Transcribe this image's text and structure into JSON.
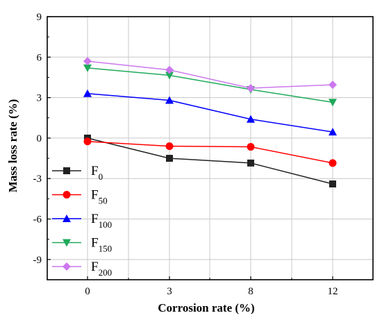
{
  "chart_data": {
    "type": "line",
    "title": "",
    "xlabel": "Corrosion rate (%)",
    "ylabel": "Mass loss rate (%)",
    "categories": [
      "0",
      "3",
      "8",
      "12"
    ],
    "ylim": [
      -10.5,
      9
    ],
    "yticks": [
      9,
      6,
      3,
      0,
      -3,
      -6,
      -9
    ],
    "ytick_labels": [
      "9",
      "6",
      "3",
      "0",
      "-3",
      "-6",
      "-9"
    ],
    "grid": true,
    "legend_position": "bottom-left",
    "series": [
      {
        "name": "F",
        "sub": "0",
        "color": "#222222",
        "marker": "square",
        "values": [
          0.0,
          -1.5,
          -1.85,
          -3.4
        ]
      },
      {
        "name": "F",
        "sub": "50",
        "color": "#ff0000",
        "marker": "circle",
        "values": [
          -0.25,
          -0.6,
          -0.65,
          -1.85
        ]
      },
      {
        "name": "F",
        "sub": "100",
        "color": "#0000ff",
        "marker": "triangle-up",
        "values": [
          3.3,
          2.8,
          1.4,
          0.45
        ]
      },
      {
        "name": "F",
        "sub": "150",
        "color": "#1faa5a",
        "marker": "triangle-down",
        "values": [
          5.2,
          4.65,
          3.6,
          2.65
        ]
      },
      {
        "name": "F",
        "sub": "200",
        "color": "#cc77ee",
        "marker": "diamond",
        "values": [
          5.7,
          5.05,
          3.7,
          3.95
        ]
      }
    ]
  }
}
